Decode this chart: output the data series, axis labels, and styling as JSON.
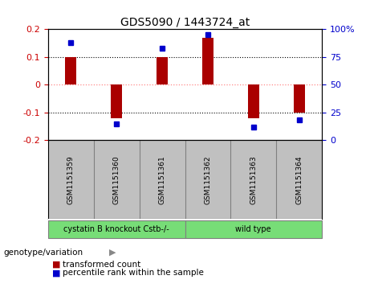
{
  "title": "GDS5090 / 1443724_at",
  "samples": [
    "GSM1151359",
    "GSM1151360",
    "GSM1151361",
    "GSM1151362",
    "GSM1151363",
    "GSM1151364"
  ],
  "bar_values": [
    0.1,
    -0.122,
    0.1,
    0.17,
    -0.122,
    -0.1
  ],
  "percentile_values": [
    88,
    15,
    83,
    95,
    12,
    18
  ],
  "group_labels": [
    "cystatin B knockout Cstb-/-",
    "wild type"
  ],
  "group_ranges": [
    [
      0,
      3
    ],
    [
      3,
      6
    ]
  ],
  "group_color": "#77DD77",
  "bar_color": "#AA0000",
  "dot_color": "#0000CC",
  "ylim_left": [
    -0.2,
    0.2
  ],
  "ylim_right": [
    0,
    100
  ],
  "yticks_left": [
    -0.2,
    -0.1,
    0.0,
    0.1,
    0.2
  ],
  "ytick_labels_left": [
    "-0.2",
    "-0.1",
    "0",
    "0.1",
    "0.2"
  ],
  "yticks_right": [
    0,
    25,
    50,
    75,
    100
  ],
  "ytick_labels_right": [
    "0",
    "25",
    "50",
    "75",
    "100%"
  ],
  "left_tick_color": "#CC0000",
  "right_tick_color": "#0000CC",
  "hline_zero_color": "#FF8888",
  "hgrid_color": "#000000",
  "background_color": "#ffffff",
  "sample_bg_color": "#C0C0C0",
  "bar_width": 0.25,
  "legend_red_label": "transformed count",
  "legend_blue_label": "percentile rank within the sample",
  "genotype_label": "genotype/variation"
}
